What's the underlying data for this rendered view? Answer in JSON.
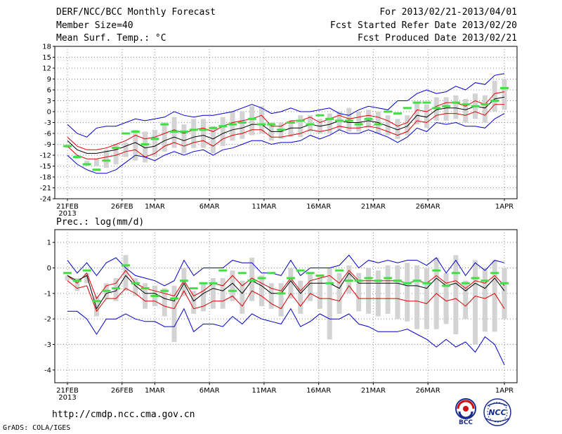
{
  "header": {
    "title": "DERF/NCC/BCC Monthly Forecast",
    "member_size": "Member Size=40",
    "variable": "Mean Surf. Temp.: °C",
    "forecast_for": "For 2013/02/21-2013/04/01",
    "started_refer": "Fcst Started Refer Date 2013/02/20",
    "produced": "Fcst Produced Date 2013/02/21"
  },
  "footer": {
    "url": "http://cmdp.ncc.cma.gov.cn",
    "grads": "GrADS: COLA/IGES",
    "logo_left_text": "BCC",
    "logo_right_text": "NCC"
  },
  "colors": {
    "mean": "#000000",
    "spread_inner": "#dd0000",
    "spread_outer": "#0000cc",
    "box": "#d3d3d3",
    "observed": "#44dd44",
    "grid": "#888888"
  },
  "chart_data": [
    {
      "type": "line",
      "title": "Mean Surf. Temp.: °C",
      "ylabel": "°C",
      "ylim": [
        -24,
        18
      ],
      "yticks": [
        "18",
        "15",
        "12",
        "9",
        "6",
        "3",
        "0",
        "-3",
        "-6",
        "-9",
        "-12",
        "-15",
        "-18",
        "-21",
        "-24"
      ],
      "ytick_values": [
        18,
        15,
        12,
        9,
        6,
        3,
        0,
        -3,
        -6,
        -9,
        -12,
        -15,
        -18,
        -21,
        -24
      ],
      "xlim": [
        0,
        40
      ],
      "xticks": [
        {
          "day": 0,
          "label": "21FEB",
          "sub": "2013"
        },
        {
          "day": 5,
          "label": "26FEB"
        },
        {
          "day": 8,
          "label": "1MAR"
        },
        {
          "day": 13,
          "label": "6MAR"
        },
        {
          "day": 18,
          "label": "11MAR"
        },
        {
          "day": 23,
          "label": "16MAR"
        },
        {
          "day": 28,
          "label": "21MAR"
        },
        {
          "day": 33,
          "label": "26MAR"
        },
        {
          "day": 40,
          "label": "1APR"
        }
      ],
      "series": [
        {
          "name": "ensemble-max",
          "color": "#0000cc",
          "values": [
            -3.5,
            -6.0,
            -7.0,
            -4.5,
            -4.0,
            -4.0,
            -3.0,
            -2.0,
            -2.5,
            -2.0,
            -1.5,
            0.0,
            -1.0,
            -1.5,
            -1.0,
            -1.0,
            -0.5,
            0.0,
            1.0,
            2.0,
            1.0,
            -0.5,
            0.0,
            1.0,
            0.0,
            0.0,
            0.5,
            1.0,
            -0.5,
            -1.0,
            0.5,
            1.5,
            1.0,
            0.5,
            3.0,
            3.0,
            5.0,
            6.0,
            5.0,
            5.5,
            7.0,
            6.0,
            8.0,
            7.5,
            10.0,
            10.5
          ]
        },
        {
          "name": "upper",
          "color": "#dd0000",
          "values": [
            -7.0,
            -9.5,
            -10.5,
            -10.5,
            -10.0,
            -9.0,
            -8.0,
            -6.5,
            -7.5,
            -7.0,
            -6.0,
            -5.0,
            -6.0,
            -5.0,
            -4.5,
            -5.5,
            -4.0,
            -3.0,
            -2.5,
            -2.0,
            -1.0,
            -4.0,
            -4.0,
            -2.5,
            -2.5,
            -1.5,
            -3.0,
            -2.0,
            -1.0,
            -2.0,
            -1.5,
            -1.0,
            -1.5,
            -2.5,
            -4.0,
            -3.0,
            0.5,
            0.0,
            1.5,
            2.5,
            2.5,
            1.5,
            3.0,
            2.0,
            5.0,
            5.5
          ]
        },
        {
          "name": "ensemble-mean",
          "color": "#000000",
          "values": [
            -8.0,
            -10.5,
            -11.5,
            -11.5,
            -11.0,
            -10.5,
            -9.5,
            -8.5,
            -10.0,
            -9.5,
            -8.0,
            -7.0,
            -8.0,
            -7.0,
            -6.5,
            -7.5,
            -6.0,
            -5.0,
            -4.5,
            -3.5,
            -3.5,
            -5.5,
            -5.5,
            -4.5,
            -4.5,
            -3.5,
            -4.0,
            -3.5,
            -2.5,
            -3.0,
            -3.0,
            -2.5,
            -3.0,
            -4.0,
            -5.0,
            -4.0,
            -1.0,
            -1.5,
            0.5,
            1.0,
            1.0,
            0.5,
            1.5,
            1.0,
            3.5,
            4.0
          ]
        },
        {
          "name": "lower",
          "color": "#dd0000",
          "values": [
            -9.5,
            -12.0,
            -13.0,
            -13.0,
            -12.5,
            -12.0,
            -11.0,
            -10.5,
            -12.5,
            -11.5,
            -9.5,
            -8.5,
            -9.5,
            -8.5,
            -8.0,
            -9.5,
            -7.5,
            -6.5,
            -6.0,
            -5.0,
            -5.0,
            -7.0,
            -7.0,
            -6.5,
            -6.0,
            -5.0,
            -5.5,
            -5.0,
            -4.0,
            -4.5,
            -4.5,
            -4.0,
            -4.5,
            -5.5,
            -6.5,
            -5.5,
            -2.5,
            -3.0,
            -1.0,
            -0.5,
            -0.5,
            -1.0,
            0.0,
            -1.0,
            2.0,
            2.0
          ]
        },
        {
          "name": "ensemble-min",
          "color": "#0000cc",
          "values": [
            -12.0,
            -14.5,
            -16.0,
            -17.0,
            -17.0,
            -16.0,
            -14.0,
            -12.0,
            -12.5,
            -13.5,
            -12.0,
            -11.0,
            -12.0,
            -11.0,
            -10.5,
            -12.0,
            -10.5,
            -10.0,
            -9.0,
            -8.0,
            -8.0,
            -9.0,
            -8.5,
            -8.5,
            -8.0,
            -6.5,
            -7.5,
            -6.5,
            -5.0,
            -6.0,
            -6.0,
            -5.0,
            -6.0,
            -7.0,
            -8.5,
            -7.0,
            -4.5,
            -5.5,
            -3.0,
            -3.5,
            -3.0,
            -4.0,
            -4.0,
            -4.5,
            -2.0,
            -0.5
          ]
        }
      ],
      "boxes": {
        "high": [
          -9.0,
          -12.0,
          -13.5,
          -13.0,
          -10.5,
          -9.0,
          -8.5,
          -5.0,
          -5.5,
          -5.0,
          -3.0,
          -1.5,
          -3.5,
          -2.0,
          -2.0,
          -4.0,
          -1.5,
          0.0,
          0.0,
          1.5,
          1.5,
          -3.0,
          -3.0,
          -2.5,
          -1.0,
          -1.0,
          -2.0,
          -0.5,
          0.0,
          1.0,
          0.0,
          0.5,
          0.0,
          -1.0,
          -2.0,
          -1.0,
          2.5,
          2.0,
          4.0,
          4.0,
          4.5,
          3.5,
          5.0,
          4.5,
          8.5,
          9.0
        ],
        "low": [
          -10.0,
          -13.0,
          -15.0,
          -15.0,
          -15.5,
          -14.5,
          -12.5,
          -13.5,
          -14.0,
          -12.5,
          -11.0,
          -10.0,
          -11.5,
          -10.0,
          -10.0,
          -11.5,
          -9.5,
          -8.0,
          -7.5,
          -6.5,
          -6.0,
          -8.0,
          -7.5,
          -7.0,
          -7.0,
          -5.5,
          -6.0,
          -6.0,
          -5.0,
          -5.5,
          -5.5,
          -4.5,
          -6.0,
          -6.5,
          -7.5,
          -6.5,
          -3.5,
          -4.5,
          -2.5,
          -2.5,
          -2.0,
          -3.0,
          -2.0,
          -3.0,
          0.0,
          0.5
        ]
      },
      "observed": [
        -9.5,
        -12.5,
        -14.5,
        -16.0,
        -13.5,
        -10.0,
        -6.0,
        -5.5,
        -9.0,
        -7.5,
        -3.5,
        -5.5,
        -5.5,
        -5.0,
        -5.0,
        -4.5,
        -4.0,
        -3.5,
        -3.0,
        -2.0,
        -3.5,
        -3.5,
        -5.0,
        -3.0,
        -2.5,
        -3.5,
        -1.0,
        -2.0,
        -2.5,
        -2.5,
        -3.5,
        -2.0,
        -3.5,
        0.0,
        -0.5,
        1.0,
        2.5,
        2.5,
        1.0,
        1.5,
        2.5,
        2.0,
        1.5,
        2.0,
        3.0,
        6.5
      ]
    },
    {
      "type": "line",
      "title": "Prec.: log(mm/d)",
      "ylabel": "log(mm/d)",
      "ylim": [
        -4.5,
        1.5
      ],
      "yticks": [
        "1",
        "0",
        "-1",
        "-2",
        "-3",
        "-4"
      ],
      "ytick_values": [
        1,
        0,
        -1,
        -2,
        -3,
        -4
      ],
      "xlim": [
        0,
        40
      ],
      "xticks": [
        {
          "day": 0,
          "label": "21FEB",
          "sub": "2013"
        },
        {
          "day": 5,
          "label": "26FEB"
        },
        {
          "day": 8,
          "label": "1MAR"
        },
        {
          "day": 13,
          "label": "6MAR"
        },
        {
          "day": 18,
          "label": "11MAR"
        },
        {
          "day": 23,
          "label": "16MAR"
        },
        {
          "day": 28,
          "label": "21MAR"
        },
        {
          "day": 33,
          "label": "26MAR"
        },
        {
          "day": 40,
          "label": "1APR"
        }
      ],
      "series": [
        {
          "name": "ensemble-max",
          "color": "#0000cc",
          "values": [
            0.3,
            -0.2,
            0.2,
            -0.3,
            0.2,
            0.4,
            0.0,
            -0.3,
            -0.4,
            -0.5,
            -0.7,
            -0.5,
            0.3,
            -0.3,
            0.0,
            0.0,
            0.0,
            0.3,
            0.2,
            0.2,
            -0.2,
            -0.2,
            -0.3,
            0.3,
            -0.3,
            0.0,
            0.0,
            0.0,
            0.1,
            0.5,
            0.0,
            0.3,
            0.2,
            0.3,
            0.2,
            0.3,
            0.3,
            0.1,
            0.4,
            -0.2,
            0.3,
            -0.3,
            0.2,
            -0.1,
            0.3,
            0.2
          ]
        },
        {
          "name": "upper",
          "color": "#dd0000",
          "values": [
            -0.3,
            -0.6,
            -0.2,
            -1.2,
            -0.7,
            -0.6,
            -0.1,
            -0.6,
            -0.8,
            -0.9,
            -1.0,
            -1.1,
            -0.5,
            -1.1,
            -0.9,
            -0.6,
            -0.7,
            -0.3,
            -0.7,
            -0.4,
            -0.6,
            -0.8,
            -0.9,
            -0.4,
            -0.9,
            -0.5,
            -0.4,
            -0.3,
            -0.6,
            -0.1,
            -0.5,
            -0.5,
            -0.5,
            -0.5,
            -0.5,
            -0.6,
            -0.5,
            -0.6,
            -0.3,
            -0.6,
            -0.5,
            -0.8,
            -0.5,
            -0.6,
            -0.3,
            -0.7
          ]
        },
        {
          "name": "ensemble-mean",
          "color": "#000000",
          "values": [
            -0.3,
            -0.5,
            -0.3,
            -1.6,
            -1.0,
            -0.9,
            -0.3,
            -0.7,
            -1.0,
            -1.0,
            -1.2,
            -1.3,
            -0.6,
            -1.3,
            -1.0,
            -0.8,
            -0.9,
            -0.6,
            -1.0,
            -0.5,
            -0.7,
            -1.0,
            -1.0,
            -0.5,
            -1.0,
            -0.6,
            -0.6,
            -0.6,
            -0.8,
            -0.2,
            -0.6,
            -0.6,
            -0.6,
            -0.6,
            -0.6,
            -0.7,
            -0.7,
            -0.8,
            -0.4,
            -0.7,
            -0.6,
            -0.9,
            -0.6,
            -0.8,
            -0.4,
            -0.9
          ]
        },
        {
          "name": "lower",
          "color": "#dd0000",
          "values": [
            -0.5,
            -0.8,
            -0.7,
            -1.7,
            -1.2,
            -1.2,
            -0.8,
            -1.0,
            -1.3,
            -1.3,
            -1.5,
            -1.6,
            -0.9,
            -1.6,
            -1.5,
            -1.3,
            -1.3,
            -1.1,
            -1.5,
            -0.9,
            -1.1,
            -1.4,
            -1.6,
            -1.0,
            -1.5,
            -1.0,
            -1.2,
            -1.2,
            -1.3,
            -0.7,
            -1.2,
            -1.2,
            -1.2,
            -1.2,
            -1.2,
            -1.3,
            -1.3,
            -1.4,
            -1.0,
            -1.3,
            -1.2,
            -1.5,
            -1.1,
            -1.2,
            -1.0,
            -1.6
          ]
        },
        {
          "name": "ensemble-min",
          "color": "#0000cc",
          "values": [
            -1.7,
            -1.7,
            -2.0,
            -2.6,
            -2.0,
            -2.0,
            -1.8,
            -2.0,
            -2.1,
            -2.1,
            -2.3,
            -2.3,
            -1.6,
            -2.5,
            -2.2,
            -2.2,
            -2.3,
            -1.9,
            -2.2,
            -1.8,
            -2.0,
            -2.1,
            -2.2,
            -1.6,
            -2.3,
            -2.1,
            -1.8,
            -2.0,
            -2.0,
            -1.8,
            -2.2,
            -2.3,
            -2.5,
            -2.5,
            -2.5,
            -2.4,
            -2.6,
            -2.8,
            -3.1,
            -2.8,
            -3.1,
            -2.9,
            -3.3,
            -2.7,
            -3.0,
            -3.8
          ]
        }
      ],
      "boxes": {
        "high": [
          -0.3,
          -0.4,
          -0.2,
          -1.1,
          -0.6,
          -0.4,
          0.5,
          -0.4,
          -0.6,
          -0.7,
          -0.8,
          -0.7,
          0.0,
          -0.9,
          -0.6,
          -0.4,
          -0.4,
          -0.1,
          -0.5,
          0.4,
          -0.3,
          -0.6,
          -0.6,
          0.0,
          -0.5,
          -0.2,
          -0.3,
          0.0,
          -0.2,
          0.1,
          -0.2,
          0.0,
          -0.1,
          0.1,
          0.1,
          0.2,
          0.1,
          0.0,
          0.4,
          -0.2,
          0.5,
          -0.5,
          0.3,
          0.0,
          0.3,
          0.0
        ],
        "low": [
          -0.5,
          -0.9,
          -0.6,
          -1.9,
          -1.2,
          -1.3,
          -0.9,
          -1.1,
          -1.6,
          -1.5,
          -1.9,
          -2.9,
          -1.1,
          -1.8,
          -1.7,
          -1.6,
          -1.6,
          -1.3,
          -1.8,
          -1.3,
          -1.5,
          -1.6,
          -1.9,
          -1.2,
          -1.8,
          -1.3,
          -1.6,
          -2.8,
          -1.8,
          -1.0,
          -1.7,
          -1.8,
          -1.9,
          -1.8,
          -2.0,
          -2.1,
          -2.4,
          -2.4,
          -2.4,
          -2.2,
          -2.6,
          -2.0,
          -3.0,
          -2.5,
          -2.5,
          -2.0
        ]
      },
      "observed": [
        -0.2,
        -0.5,
        -0.1,
        -1.3,
        -0.9,
        -0.8,
        0.1,
        -0.6,
        -0.8,
        -1.1,
        -0.9,
        -1.2,
        -0.5,
        -0.8,
        -0.6,
        -0.6,
        -0.1,
        -0.9,
        -0.2,
        -0.5,
        -0.4,
        -0.2,
        -1.0,
        -0.4,
        -0.1,
        -0.2,
        -0.3,
        -0.6,
        -0.1,
        -0.5,
        -0.5,
        -0.4,
        -0.5,
        -0.4,
        -0.5,
        -0.6,
        -0.5,
        -0.6,
        -0.1,
        -0.7,
        -0.2,
        -0.6,
        -0.4,
        -0.5,
        -0.2,
        -0.6
      ]
    }
  ]
}
